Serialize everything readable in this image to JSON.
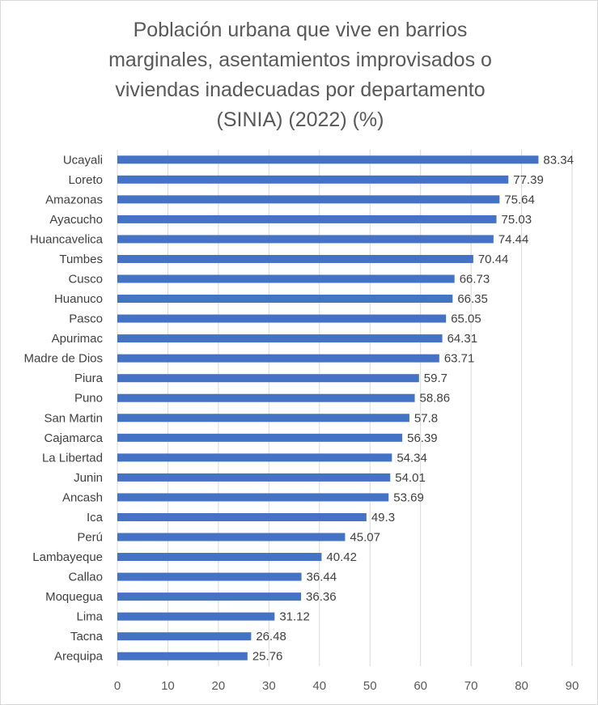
{
  "chart_data": {
    "type": "bar",
    "orientation": "horizontal",
    "title_lines": [
      "Población urbana que vive en barrios",
      "marginales, asentamientos improvisados o",
      "viviendas inadecuadas por departamento",
      "(SINIA) (2022) (%)"
    ],
    "categories": [
      "Ucayali",
      "Loreto",
      "Amazonas",
      "Ayacucho",
      "Huancavelica",
      "Tumbes",
      "Cusco",
      "Huanuco",
      "Pasco",
      "Apurimac",
      "Madre de Dios",
      "Piura",
      "Puno",
      "San Martin",
      "Cajamarca",
      "La Libertad",
      "Junin",
      "Ancash",
      "Ica",
      "Perú",
      "Lambayeque",
      "Callao",
      "Moquegua",
      "Lima",
      "Tacna",
      "Arequipa"
    ],
    "values": [
      83.34,
      77.39,
      75.64,
      75.03,
      74.44,
      70.44,
      66.73,
      66.35,
      65.05,
      64.31,
      63.71,
      59.7,
      58.86,
      57.8,
      56.39,
      54.34,
      54.01,
      53.69,
      49.3,
      45.07,
      40.42,
      36.44,
      36.36,
      31.12,
      26.48,
      25.76
    ],
    "data_labels": [
      "83.34",
      "77.39",
      "75.64",
      "75.03",
      "74.44",
      "70.44",
      "66.73",
      "66.35",
      "65.05",
      "64.31",
      "63.71",
      "59.7",
      "58.86",
      "57.8",
      "56.39",
      "54.34",
      "54.01",
      "53.69",
      "49.3",
      "45.07",
      "40.42",
      "36.44",
      "36.36",
      "31.12",
      "26.48",
      "25.76"
    ],
    "xlim": [
      0,
      90
    ],
    "x_ticks": [
      "0",
      "10",
      "20",
      "30",
      "40",
      "50",
      "60",
      "70",
      "80",
      "90"
    ],
    "xlabel": "",
    "ylabel": "",
    "grid": true,
    "legend": "none",
    "bar_color": "#4472c4",
    "grid_color": "#d9d9d9",
    "text_color": "#404040"
  }
}
